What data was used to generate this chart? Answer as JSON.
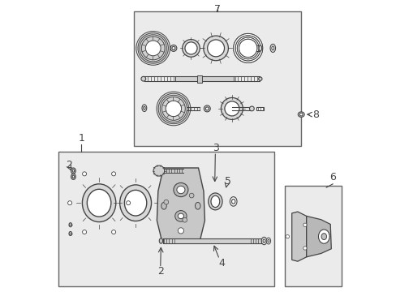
{
  "bg_color": "#ffffff",
  "box_bg": "#ebebeb",
  "box_edge": "#666666",
  "dgray": "#444444",
  "mgray": "#888888",
  "lgray": "#cccccc",
  "label_fontsize": 9
}
